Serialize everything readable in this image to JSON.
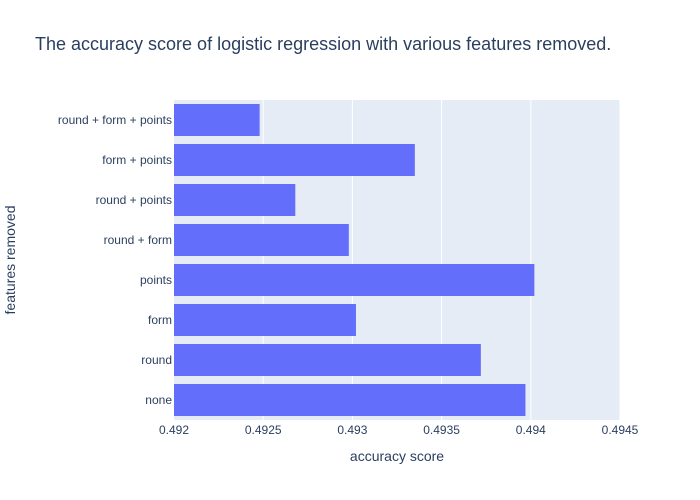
{
  "chart_data": {
    "type": "bar",
    "orientation": "horizontal",
    "title": "The accuracy score of logistic regression with various features removed.",
    "xlabel": "accuracy score",
    "ylabel": "features removed",
    "categories": [
      "none",
      "round",
      "form",
      "points",
      "round + form",
      "round + points",
      "form + points",
      "round + form + points"
    ],
    "values": [
      0.49397,
      0.49372,
      0.49302,
      0.49402,
      0.49298,
      0.49268,
      0.49335,
      0.49248
    ],
    "xlim": [
      0.492,
      0.4945
    ],
    "xticks": [
      "0.492",
      "0.4925",
      "0.493",
      "0.4935",
      "0.494",
      "0.4945"
    ],
    "grid": true,
    "colors": {
      "bar": "#636efa",
      "plot_background": "#e5ecf6",
      "grid": "#ffffff",
      "text": "#2a3f5f"
    }
  }
}
